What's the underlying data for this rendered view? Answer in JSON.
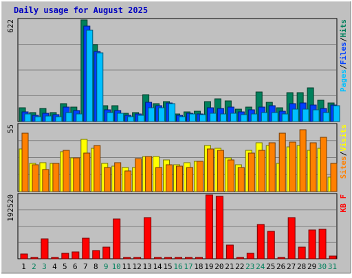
{
  "chart_data": [
    {
      "type": "bar",
      "title": "Daily usage for August 2025",
      "categories": [
        "1",
        "2",
        "3",
        "4",
        "5",
        "6",
        "7",
        "8",
        "9",
        "10",
        "11",
        "12",
        "13",
        "14",
        "15",
        "16",
        "17",
        "18",
        "19",
        "20",
        "21",
        "22",
        "23",
        "24",
        "25",
        "26",
        "27",
        "28",
        "29",
        "30",
        "31"
      ],
      "weekend_days": [
        "2",
        "3",
        "9",
        "10",
        "16",
        "17",
        "23",
        "24",
        "30",
        "31"
      ],
      "ymax_label": "622",
      "ylim": [
        0,
        622
      ],
      "legend": [
        "Pages",
        "Files",
        "Hits"
      ],
      "legend_separator": "/",
      "series": [
        {
          "name": "Hits",
          "color": "#00805c",
          "values": [
            85,
            55,
            78,
            55,
            110,
            88,
            622,
            470,
            95,
            95,
            50,
            55,
            165,
            110,
            120,
            48,
            60,
            62,
            120,
            140,
            128,
            75,
            90,
            180,
            118,
            82,
            178,
            175,
            205,
            130,
            115
          ]
        },
        {
          "name": "Files",
          "color": "#0040ff",
          "values": [
            60,
            38,
            50,
            40,
            88,
            68,
            585,
            430,
            70,
            68,
            38,
            45,
            118,
            95,
            115,
            38,
            50,
            48,
            85,
            80,
            88,
            58,
            70,
            90,
            95,
            62,
            110,
            115,
            100,
            80,
            100
          ]
        },
        {
          "name": "Pages",
          "color": "#00c0ff",
          "values": [
            45,
            28,
            35,
            30,
            55,
            45,
            560,
            420,
            55,
            50,
            30,
            38,
            85,
            85,
            110,
            30,
            45,
            40,
            50,
            45,
            50,
            40,
            48,
            55,
            55,
            45,
            75,
            75,
            70,
            55,
            95
          ]
        }
      ]
    },
    {
      "type": "bar",
      "categories": [
        "1",
        "2",
        "3",
        "4",
        "5",
        "6",
        "7",
        "8",
        "9",
        "10",
        "11",
        "12",
        "13",
        "14",
        "15",
        "16",
        "17",
        "18",
        "19",
        "20",
        "21",
        "22",
        "23",
        "24",
        "25",
        "26",
        "27",
        "28",
        "29",
        "30",
        "31"
      ],
      "ymax_label": "55",
      "ylim": [
        0,
        55
      ],
      "legend": [
        "Sites",
        "Visits"
      ],
      "legend_separator": "/",
      "series": [
        {
          "name": "Visits",
          "color": "#ffff00",
          "values": [
            35,
            23,
            24,
            23,
            33,
            28,
            43,
            36,
            23,
            21,
            20,
            20,
            29,
            29,
            26,
            22,
            24,
            25,
            38,
            36,
            28,
            22,
            34,
            40,
            38,
            23,
            37,
            38,
            34,
            36,
            12
          ]
        },
        {
          "name": "Sites",
          "color": "#ff8000",
          "values": [
            48,
            22,
            18,
            23,
            34,
            28,
            32,
            38,
            20,
            24,
            17,
            27,
            29,
            20,
            22,
            21,
            20,
            25,
            35,
            34,
            26,
            20,
            32,
            34,
            40,
            48,
            41,
            51,
            40,
            45,
            23
          ]
        }
      ]
    },
    {
      "type": "bar",
      "categories": [
        "1",
        "2",
        "3",
        "4",
        "5",
        "6",
        "7",
        "8",
        "9",
        "10",
        "11",
        "12",
        "13",
        "14",
        "15",
        "16",
        "17",
        "18",
        "19",
        "20",
        "21",
        "22",
        "23",
        "24",
        "25",
        "26",
        "27",
        "28",
        "29",
        "30",
        "31"
      ],
      "ymax_label": "192520",
      "ylim": [
        0,
        192520
      ],
      "legend": [
        "KB F"
      ],
      "legend_separator": "",
      "series": [
        {
          "name": "KB F",
          "color": "#ff0000",
          "values": [
            15000,
            3000,
            60000,
            0,
            16000,
            20000,
            62000,
            24000,
            35000,
            120000,
            0,
            0,
            125000,
            0,
            0,
            0,
            0,
            0,
            192000,
            188000,
            42000,
            4000,
            16000,
            103000,
            83000,
            4000,
            125000,
            36000,
            86000,
            88000,
            8000
          ]
        }
      ]
    }
  ]
}
